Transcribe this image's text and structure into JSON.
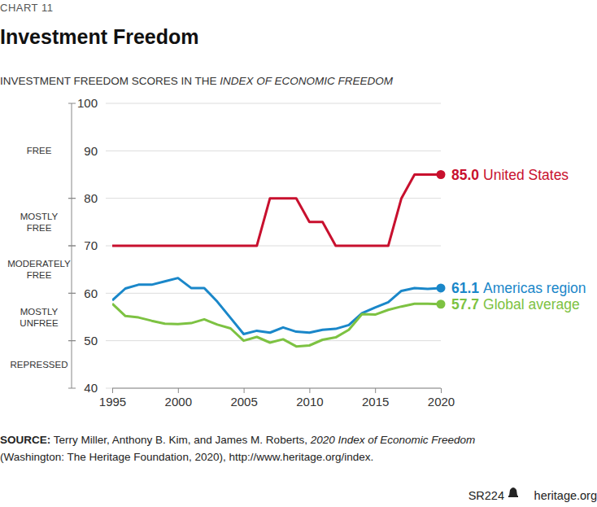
{
  "chart_data": {
    "type": "line",
    "kicker": "CHART 11",
    "title": "Investment Freedom",
    "subtitle_parts": [
      "INVESTMENT FREEDOM SCORES IN THE ",
      "INDEX OF ECONOMIC FREEDOM"
    ],
    "x": [
      1995,
      1996,
      1997,
      1998,
      1999,
      2000,
      2001,
      2002,
      2003,
      2004,
      2005,
      2006,
      2007,
      2008,
      2009,
      2010,
      2011,
      2012,
      2013,
      2014,
      2015,
      2016,
      2017,
      2018,
      2019,
      2020
    ],
    "xlim": [
      1995,
      2020
    ],
    "xticks": [
      1995,
      2000,
      2005,
      2010,
      2015,
      2020
    ],
    "ylim": [
      40,
      100
    ],
    "yticks": [
      40,
      50,
      60,
      70,
      80,
      90,
      100
    ],
    "grid": true,
    "data_labels": true,
    "zones": [
      {
        "label": "FREE",
        "from": 80,
        "to": 100
      },
      {
        "label": "MOSTLY FREE",
        "from": 70,
        "to": 80
      },
      {
        "label": "MODERATELY FREE",
        "from": 60,
        "to": 70
      },
      {
        "label": "MOSTLY UNFREE",
        "from": 50,
        "to": 60
      },
      {
        "label": "REPRESSED",
        "from": 40,
        "to": 50
      }
    ],
    "series": [
      {
        "name": "United States",
        "color": "#c8102e",
        "values": [
          70,
          70,
          70,
          70,
          70,
          70,
          70,
          70,
          70,
          70,
          70,
          70,
          80,
          80,
          80,
          75,
          75,
          70,
          70,
          70,
          70,
          70,
          80,
          85,
          85,
          85
        ],
        "value_labels": [
          null,
          null,
          null,
          null,
          null,
          null,
          null,
          null,
          null,
          null,
          null,
          null,
          null,
          null,
          null,
          null,
          null,
          null,
          null,
          null,
          null,
          null,
          null,
          null,
          null,
          "85.0"
        ]
      },
      {
        "name": "Americas region",
        "color": "#1a87c9",
        "values": [
          58.5,
          61,
          61.8,
          61.8,
          62.5,
          63.2,
          61.1,
          61.1,
          58.2,
          54.8,
          51.4,
          52.1,
          51.7,
          52.8,
          51.9,
          51.7,
          52.3,
          52.5,
          53.3,
          55.8,
          57,
          58.1,
          60.5,
          61.1,
          60.9,
          61.1
        ],
        "value_labels": [
          null,
          null,
          null,
          null,
          null,
          null,
          null,
          null,
          null,
          null,
          null,
          null,
          null,
          null,
          null,
          null,
          null,
          null,
          null,
          null,
          null,
          null,
          null,
          null,
          null,
          "61.1"
        ]
      },
      {
        "name": "Global average",
        "color": "#7dc242",
        "values": [
          57.8,
          55.2,
          54.9,
          54.2,
          53.6,
          53.5,
          53.7,
          54.5,
          53.4,
          52.6,
          50,
          50.8,
          49.6,
          50.3,
          48.8,
          49,
          50.2,
          50.7,
          52.3,
          55.6,
          55.5,
          56.5,
          57.2,
          57.8,
          57.8,
          57.7
        ],
        "value_labels": [
          null,
          null,
          null,
          null,
          null,
          null,
          null,
          null,
          null,
          null,
          null,
          null,
          null,
          null,
          null,
          null,
          null,
          null,
          null,
          null,
          null,
          null,
          null,
          null,
          null,
          "57.7"
        ]
      }
    ],
    "source": {
      "label": "SOURCE:",
      "lines": [
        [
          "Terry Miller, Anthony B. Kim, and James M. Roberts, ",
          "2020 Index of Economic Freedom"
        ],
        [
          "(Washington: The Heritage Foundation, 2020), http://www.heritage.org/index."
        ]
      ]
    },
    "footer": [
      "SR224",
      "heritage.org"
    ]
  }
}
